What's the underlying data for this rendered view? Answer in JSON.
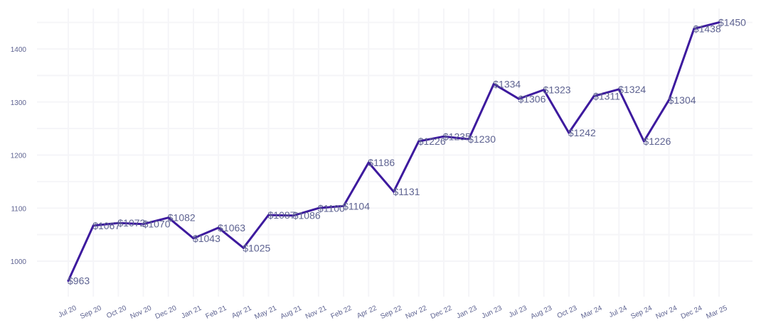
{
  "chart_data": {
    "type": "line",
    "title": "",
    "xlabel": "",
    "ylabel": "",
    "ylim": [
      950,
      1465
    ],
    "y_ticks": [
      "1000",
      "1100",
      "1200",
      "1300",
      "1400"
    ],
    "y_tick_values": [
      1000,
      1100,
      1200,
      1300,
      1400
    ],
    "grid": true,
    "line_color": "#3d1a9e",
    "text_color": "#5e6391",
    "grid_color": "#f5f5f8",
    "categories": [
      "Jul 20",
      "Sep 20",
      "Oct 20",
      "Nov 20",
      "Dec 20",
      "Jan 21",
      "Feb 21",
      "Apr 21",
      "May 21",
      "Aug 21",
      "Nov 21",
      "Feb 22",
      "Apr 22",
      "Sep 22",
      "Nov 22",
      "Dec 22",
      "Jan 23",
      "Jun 23",
      "Jul 23",
      "Aug 23",
      "Oct 23",
      "Mar 24",
      "Jul 24",
      "Sep 24",
      "Nov 24",
      "Dec 24",
      "Mar 25"
    ],
    "series": [
      {
        "name": "Price",
        "values": [
          963,
          1067,
          1072,
          1070,
          1082,
          1043,
          1063,
          1025,
          1087,
          1086,
          1100,
          1104,
          1186,
          1131,
          1226,
          1235,
          1230,
          1334,
          1306,
          1323,
          1242,
          1311,
          1324,
          1226,
          1304,
          1438,
          1450
        ],
        "labels": [
          "$963",
          "$1067",
          "$1072",
          "$1070",
          "$1082",
          "$1043",
          "$1063",
          "$1025",
          "$1087",
          "$1086",
          "$1100",
          "$1104",
          "$1186",
          "$1131",
          "$1226",
          "$1235",
          "$1230",
          "$1334",
          "$1306",
          "$1323",
          "$1242",
          "$1311",
          "$1324",
          "$1226",
          "$1304",
          "$1438",
          "$1450"
        ]
      }
    ]
  }
}
